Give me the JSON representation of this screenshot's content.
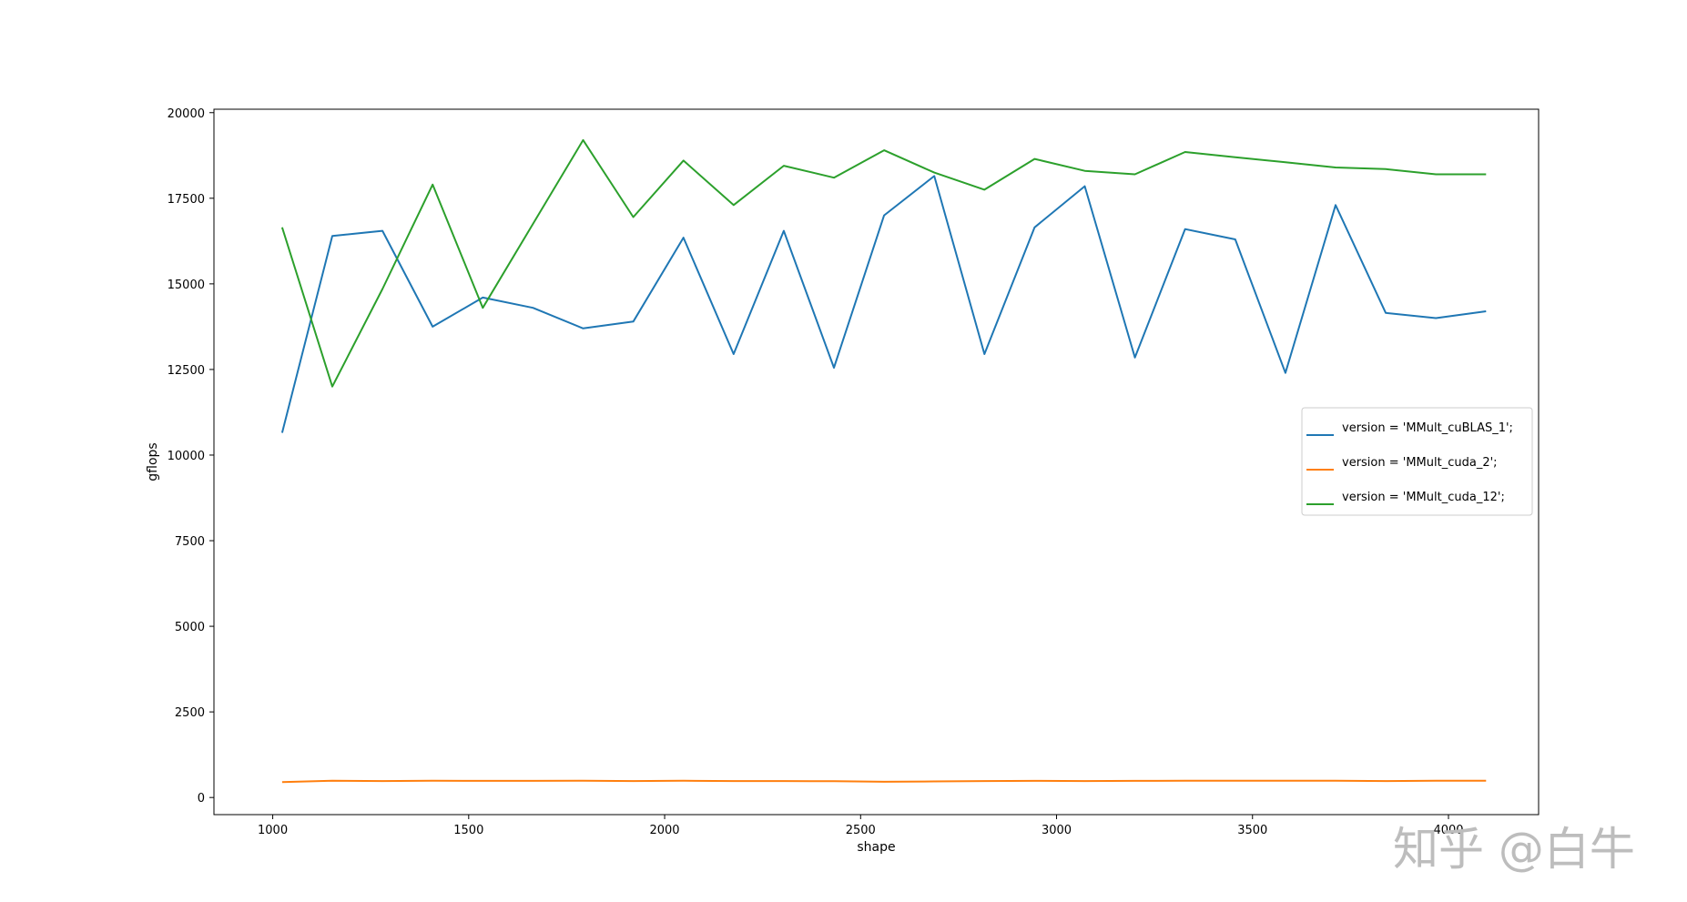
{
  "chart_data": {
    "type": "line",
    "xlabel": "shape",
    "ylabel": "gflops",
    "xlim": [
      850,
      4230
    ],
    "ylim": [
      -500,
      20100
    ],
    "xticks": [
      1000,
      1500,
      2000,
      2500,
      3000,
      3500,
      4000
    ],
    "yticks": [
      0,
      2500,
      5000,
      7500,
      10000,
      12500,
      15000,
      17500,
      20000
    ],
    "grid": false,
    "legend_position": "center-right",
    "x": [
      1024,
      1152,
      1280,
      1408,
      1536,
      1664,
      1792,
      1920,
      2048,
      2176,
      2304,
      2432,
      2560,
      2688,
      2816,
      2944,
      3072,
      3200,
      3328,
      3456,
      3584,
      3712,
      3840,
      3968,
      4096
    ],
    "series": [
      {
        "name": "version = 'MMult_cuBLAS_1';",
        "color": "#1f77b4",
        "values": [
          10650,
          16400,
          16550,
          13750,
          14600,
          14300,
          13700,
          13900,
          16350,
          12950,
          16550,
          12550,
          17000,
          18150,
          12950,
          16650,
          17850,
          12850,
          16600,
          16300,
          12400,
          17300,
          14150,
          14000,
          14200
        ]
      },
      {
        "name": "version = 'MMult_cuda_2';",
        "color": "#ff7f0e",
        "values": [
          450,
          490,
          480,
          490,
          485,
          485,
          490,
          480,
          490,
          480,
          480,
          475,
          460,
          470,
          480,
          485,
          480,
          485,
          490,
          490,
          490,
          490,
          480,
          490,
          490
        ]
      },
      {
        "name": "version = 'MMult_cuda_12';",
        "color": "#2ca02c",
        "values": [
          16650,
          12000,
          14850,
          17900,
          14300,
          16750,
          19200,
          16950,
          18600,
          17300,
          18450,
          18100,
          18900,
          18250,
          17750,
          18650,
          18300,
          18200,
          18850,
          18700,
          18550,
          18400,
          18350,
          18200,
          18200
        ]
      }
    ]
  },
  "watermark": {
    "text": "知乎 @白牛"
  }
}
